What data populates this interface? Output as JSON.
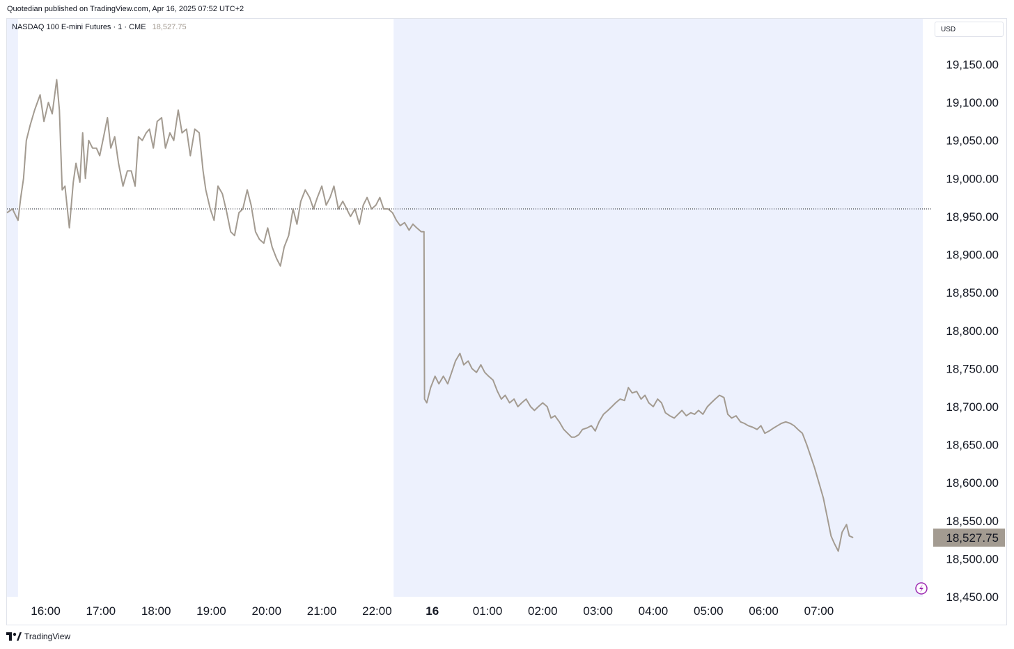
{
  "header": {
    "published_by": "Quotedian published on TradingView.com, Apr 16, 2025 07:52 UTC+2"
  },
  "legend": {
    "symbol": "NASDAQ 100 E-mini Futures · 1 · CME",
    "last_value": "18,527.75"
  },
  "currency_button": "USD",
  "footer": {
    "brand": "TradingView"
  },
  "colors": {
    "line": "#a39b91",
    "session_shade": "#edf1fd",
    "price_tag_bg": "#a39b91",
    "reference_line": "#131722",
    "flash_icon": "#9c27b0"
  },
  "icons": {
    "flash": "lightning-circle-icon",
    "brand": "tradingview-logo-icon"
  },
  "chart_data": {
    "type": "line",
    "title": "NASDAQ 100 E-mini Futures · 1 · CME",
    "xlabel": "",
    "ylabel": "",
    "x_unit": "hours since 15:00 (Apr 15)",
    "x_range": [
      15.3,
      31.88
    ],
    "ylim": [
      18450,
      19210
    ],
    "y_ticks": [
      "19,150.00",
      "19,100.00",
      "19,050.00",
      "19,000.00",
      "18,950.00",
      "18,900.00",
      "18,850.00",
      "18,800.00",
      "18,750.00",
      "18,700.00",
      "18,650.00",
      "18,600.00",
      "18,550.00",
      "18,500.00",
      "18,450.00"
    ],
    "y_tick_values": [
      19150,
      19100,
      19050,
      19000,
      18950,
      18900,
      18850,
      18800,
      18750,
      18700,
      18650,
      18600,
      18550,
      18500,
      18450
    ],
    "x_ticks": [
      {
        "label": "16:00",
        "x": 16
      },
      {
        "label": "17:00",
        "x": 17
      },
      {
        "label": "18:00",
        "x": 18
      },
      {
        "label": "19:00",
        "x": 19
      },
      {
        "label": "20:00",
        "x": 20
      },
      {
        "label": "21:00",
        "x": 21
      },
      {
        "label": "22:00",
        "x": 22
      },
      {
        "label": "16",
        "x": 23,
        "bold": true
      },
      {
        "label": "01:00",
        "x": 24
      },
      {
        "label": "02:00",
        "x": 25
      },
      {
        "label": "03:00",
        "x": 26
      },
      {
        "label": "04:00",
        "x": 27
      },
      {
        "label": "05:00",
        "x": 28
      },
      {
        "label": "06:00",
        "x": 29
      },
      {
        "label": "07:00",
        "x": 30
      }
    ],
    "shaded_sessions": [
      [
        15.3,
        15.5
      ],
      [
        22.3,
        31.88
      ]
    ],
    "reference_line": 18960,
    "last_price": 18527.75,
    "last_price_label": "18,527.75",
    "series": [
      {
        "values": [
          [
            15.3,
            18955
          ],
          [
            15.4,
            18960
          ],
          [
            15.5,
            18945
          ],
          [
            15.55,
            18975
          ],
          [
            15.6,
            19000
          ],
          [
            15.65,
            19050
          ],
          [
            15.72,
            19070
          ],
          [
            15.8,
            19090
          ],
          [
            15.9,
            19110
          ],
          [
            15.97,
            19075
          ],
          [
            16.05,
            19100
          ],
          [
            16.12,
            19085
          ],
          [
            16.2,
            19130
          ],
          [
            16.25,
            19090
          ],
          [
            16.3,
            18985
          ],
          [
            16.35,
            18990
          ],
          [
            16.43,
            18935
          ],
          [
            16.5,
            18995
          ],
          [
            16.55,
            19020
          ],
          [
            16.62,
            18995
          ],
          [
            16.67,
            19060
          ],
          [
            16.72,
            19000
          ],
          [
            16.78,
            19050
          ],
          [
            16.85,
            19040
          ],
          [
            16.92,
            19040
          ],
          [
            16.98,
            19030
          ],
          [
            17.05,
            19055
          ],
          [
            17.12,
            19080
          ],
          [
            17.18,
            19040
          ],
          [
            17.25,
            19055
          ],
          [
            17.32,
            19020
          ],
          [
            17.4,
            18990
          ],
          [
            17.48,
            19010
          ],
          [
            17.55,
            19010
          ],
          [
            17.62,
            18990
          ],
          [
            17.68,
            19055
          ],
          [
            17.75,
            19050
          ],
          [
            17.82,
            19060
          ],
          [
            17.88,
            19065
          ],
          [
            17.95,
            19040
          ],
          [
            18.02,
            19075
          ],
          [
            18.1,
            19080
          ],
          [
            18.17,
            19040
          ],
          [
            18.25,
            19060
          ],
          [
            18.32,
            19050
          ],
          [
            18.4,
            19090
          ],
          [
            18.47,
            19060
          ],
          [
            18.55,
            19065
          ],
          [
            18.62,
            19030
          ],
          [
            18.7,
            19065
          ],
          [
            18.78,
            19060
          ],
          [
            18.85,
            19010
          ],
          [
            18.9,
            18985
          ],
          [
            18.98,
            18960
          ],
          [
            19.05,
            18945
          ],
          [
            19.12,
            18990
          ],
          [
            19.2,
            18980
          ],
          [
            19.28,
            18955
          ],
          [
            19.35,
            18930
          ],
          [
            19.42,
            18925
          ],
          [
            19.5,
            18955
          ],
          [
            19.57,
            18960
          ],
          [
            19.65,
            18985
          ],
          [
            19.72,
            18965
          ],
          [
            19.8,
            18930
          ],
          [
            19.87,
            18920
          ],
          [
            19.95,
            18915
          ],
          [
            20.02,
            18935
          ],
          [
            20.1,
            18910
          ],
          [
            20.18,
            18895
          ],
          [
            20.25,
            18885
          ],
          [
            20.32,
            18910
          ],
          [
            20.4,
            18925
          ],
          [
            20.48,
            18960
          ],
          [
            20.55,
            18940
          ],
          [
            20.62,
            18970
          ],
          [
            20.7,
            18985
          ],
          [
            20.78,
            18975
          ],
          [
            20.85,
            18960
          ],
          [
            20.92,
            18975
          ],
          [
            21.0,
            18990
          ],
          [
            21.08,
            18965
          ],
          [
            21.15,
            18975
          ],
          [
            21.22,
            18990
          ],
          [
            21.3,
            18960
          ],
          [
            21.38,
            18970
          ],
          [
            21.45,
            18960
          ],
          [
            21.52,
            18950
          ],
          [
            21.6,
            18960
          ],
          [
            21.68,
            18940
          ],
          [
            21.75,
            18965
          ],
          [
            21.82,
            18975
          ],
          [
            21.9,
            18960
          ],
          [
            21.98,
            18965
          ],
          [
            22.05,
            18975
          ],
          [
            22.12,
            18960
          ],
          [
            22.2,
            18960
          ],
          [
            22.28,
            18955
          ],
          [
            22.35,
            18945
          ],
          [
            22.42,
            18938
          ],
          [
            22.5,
            18942
          ],
          [
            22.58,
            18932
          ],
          [
            22.65,
            18940
          ],
          [
            22.72,
            18935
          ],
          [
            22.8,
            18930
          ],
          [
            22.85,
            18930
          ],
          [
            22.86,
            18710
          ],
          [
            22.9,
            18705
          ],
          [
            22.97,
            18725
          ],
          [
            23.05,
            18740
          ],
          [
            23.12,
            18730
          ],
          [
            23.2,
            18740
          ],
          [
            23.28,
            18730
          ],
          [
            23.35,
            18745
          ],
          [
            23.42,
            18760
          ],
          [
            23.5,
            18770
          ],
          [
            23.57,
            18755
          ],
          [
            23.65,
            18760
          ],
          [
            23.72,
            18750
          ],
          [
            23.8,
            18745
          ],
          [
            23.88,
            18755
          ],
          [
            23.95,
            18745
          ],
          [
            24.02,
            18740
          ],
          [
            24.1,
            18735
          ],
          [
            24.18,
            18720
          ],
          [
            24.25,
            18710
          ],
          [
            24.32,
            18715
          ],
          [
            24.4,
            18705
          ],
          [
            24.48,
            18710
          ],
          [
            24.55,
            18700
          ],
          [
            24.62,
            18705
          ],
          [
            24.7,
            18710
          ],
          [
            24.78,
            18700
          ],
          [
            24.85,
            18695
          ],
          [
            24.92,
            18700
          ],
          [
            25.0,
            18705
          ],
          [
            25.08,
            18700
          ],
          [
            25.15,
            18685
          ],
          [
            25.22,
            18688
          ],
          [
            25.3,
            18680
          ],
          [
            25.38,
            18670
          ],
          [
            25.45,
            18665
          ],
          [
            25.52,
            18660
          ],
          [
            25.58,
            18660
          ],
          [
            25.65,
            18663
          ],
          [
            25.72,
            18670
          ],
          [
            25.8,
            18672
          ],
          [
            25.88,
            18675
          ],
          [
            25.95,
            18668
          ],
          [
            26.02,
            18680
          ],
          [
            26.1,
            18690
          ],
          [
            26.18,
            18695
          ],
          [
            26.25,
            18700
          ],
          [
            26.32,
            18705
          ],
          [
            26.4,
            18710
          ],
          [
            26.48,
            18708
          ],
          [
            26.55,
            18725
          ],
          [
            26.62,
            18718
          ],
          [
            26.7,
            18720
          ],
          [
            26.78,
            18710
          ],
          [
            26.85,
            18715
          ],
          [
            26.92,
            18705
          ],
          [
            27.0,
            18700
          ],
          [
            27.08,
            18710
          ],
          [
            27.15,
            18705
          ],
          [
            27.22,
            18692
          ],
          [
            27.3,
            18688
          ],
          [
            27.38,
            18685
          ],
          [
            27.45,
            18690
          ],
          [
            27.52,
            18695
          ],
          [
            27.6,
            18688
          ],
          [
            27.68,
            18692
          ],
          [
            27.75,
            18690
          ],
          [
            27.82,
            18695
          ],
          [
            27.9,
            18690
          ],
          [
            27.98,
            18700
          ],
          [
            28.05,
            18705
          ],
          [
            28.12,
            18710
          ],
          [
            28.2,
            18715
          ],
          [
            28.28,
            18712
          ],
          [
            28.35,
            18690
          ],
          [
            28.42,
            18685
          ],
          [
            28.5,
            18688
          ],
          [
            28.58,
            18680
          ],
          [
            28.65,
            18678
          ],
          [
            28.72,
            18675
          ],
          [
            28.8,
            18673
          ],
          [
            28.88,
            18670
          ],
          [
            28.95,
            18675
          ],
          [
            29.02,
            18665
          ],
          [
            29.1,
            18668
          ],
          [
            29.18,
            18672
          ],
          [
            29.25,
            18675
          ],
          [
            29.32,
            18678
          ],
          [
            29.4,
            18680
          ],
          [
            29.48,
            18678
          ],
          [
            29.55,
            18675
          ],
          [
            29.62,
            18670
          ],
          [
            29.7,
            18665
          ],
          [
            29.78,
            18650
          ],
          [
            29.85,
            18635
          ],
          [
            29.92,
            18620
          ],
          [
            30.0,
            18600
          ],
          [
            30.08,
            18580
          ],
          [
            30.15,
            18555
          ],
          [
            30.22,
            18530
          ],
          [
            30.28,
            18520
          ],
          [
            30.35,
            18510
          ],
          [
            30.42,
            18535
          ],
          [
            30.5,
            18545
          ],
          [
            30.55,
            18530
          ],
          [
            30.62,
            18527.75
          ]
        ]
      }
    ]
  }
}
